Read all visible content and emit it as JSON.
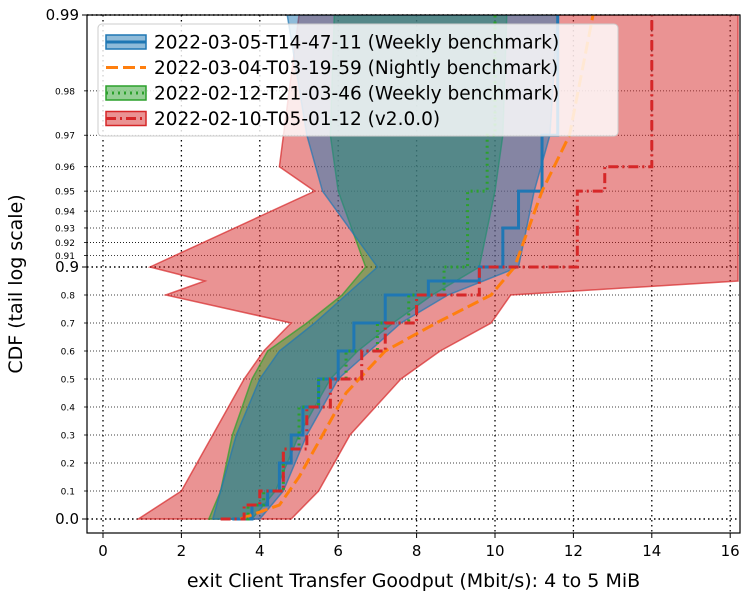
{
  "chart_data": {
    "type": "line",
    "subtype": "cdf-step-with-confidence-bands",
    "xlabel": "exit Client Transfer Goodput (Mbit/s): 4 to 5 MiB",
    "ylabel": "CDF (tail log scale)",
    "xlim": [
      -0.4,
      16.2
    ],
    "y_scale": "tail-log",
    "x_ticks": [
      "0",
      "2",
      "4",
      "6",
      "8",
      "10",
      "12",
      "14",
      "16"
    ],
    "y_ticks_major": [
      "0.0",
      "0.9",
      "0.99"
    ],
    "y_ticks_minor": [
      "0.1",
      "0.2",
      "0.3",
      "0.4",
      "0.5",
      "0.6",
      "0.7",
      "0.8",
      "0.91",
      "0.92",
      "0.93",
      "0.94",
      "0.95",
      "0.96",
      "0.97",
      "0.98"
    ],
    "grid": true,
    "legend_position": "top-left",
    "series": [
      {
        "name": "2022-03-05-T14-47-11 (Weekly benchmark)",
        "color": "#1f77b4",
        "linestyle": "solid",
        "points": [
          [
            3.3,
            0.0
          ],
          [
            3.8,
            0.05
          ],
          [
            4.2,
            0.1
          ],
          [
            4.5,
            0.2
          ],
          [
            4.8,
            0.3
          ],
          [
            5.1,
            0.4
          ],
          [
            5.5,
            0.5
          ],
          [
            6.0,
            0.6
          ],
          [
            6.4,
            0.7
          ],
          [
            7.2,
            0.8
          ],
          [
            8.3,
            0.85
          ],
          [
            9.6,
            0.9
          ],
          [
            10.2,
            0.93
          ],
          [
            10.6,
            0.95
          ],
          [
            11.2,
            0.97
          ],
          [
            11.6,
            0.99
          ]
        ],
        "band": [
          [
            2.8,
            4.0,
            0.0
          ],
          [
            3.0,
            4.6,
            0.1
          ],
          [
            3.4,
            5.2,
            0.3
          ],
          [
            4.0,
            6.0,
            0.5
          ],
          [
            4.5,
            6.8,
            0.6
          ],
          [
            5.4,
            7.6,
            0.7
          ],
          [
            6.2,
            8.8,
            0.8
          ],
          [
            7.0,
            10.6,
            0.9
          ],
          [
            5.6,
            11.0,
            0.95
          ],
          [
            5.2,
            11.4,
            0.97
          ],
          [
            4.7,
            11.6,
            0.99
          ]
        ]
      },
      {
        "name": "2022-03-04-T03-19-59 (Nightly benchmark)",
        "color": "#ff7f0e",
        "linestyle": "dashed",
        "points": [
          [
            3.5,
            0.0
          ],
          [
            4.5,
            0.05
          ],
          [
            5.0,
            0.15
          ],
          [
            5.6,
            0.3
          ],
          [
            6.2,
            0.45
          ],
          [
            7.2,
            0.6
          ],
          [
            8.5,
            0.7
          ],
          [
            9.9,
            0.8
          ],
          [
            10.5,
            0.9
          ],
          [
            11.2,
            0.95
          ],
          [
            11.9,
            0.97
          ],
          [
            12.5,
            0.99
          ]
        ]
      },
      {
        "name": "2022-02-12-T21-03-46 (Weekly benchmark)",
        "color": "#2ca02c",
        "linestyle": "dotted",
        "points": [
          [
            3.2,
            0.0
          ],
          [
            3.7,
            0.05
          ],
          [
            4.1,
            0.1
          ],
          [
            4.6,
            0.25
          ],
          [
            5.0,
            0.4
          ],
          [
            5.5,
            0.5
          ],
          [
            6.2,
            0.6
          ],
          [
            7.0,
            0.7
          ],
          [
            7.8,
            0.8
          ],
          [
            8.7,
            0.9
          ],
          [
            9.3,
            0.95
          ],
          [
            9.8,
            0.97
          ],
          [
            10.0,
            0.99
          ]
        ],
        "band": [
          [
            2.7,
            3.8,
            0.0
          ],
          [
            3.0,
            4.4,
            0.1
          ],
          [
            3.3,
            5.0,
            0.3
          ],
          [
            3.8,
            5.8,
            0.5
          ],
          [
            4.2,
            6.5,
            0.6
          ],
          [
            5.2,
            7.4,
            0.7
          ],
          [
            6.1,
            8.4,
            0.8
          ],
          [
            6.7,
            9.6,
            0.9
          ],
          [
            6.0,
            10.0,
            0.95
          ],
          [
            5.8,
            10.2,
            0.97
          ],
          [
            5.9,
            10.3,
            0.99
          ]
        ]
      },
      {
        "name": "2022-02-10-T05-01-12 (v2.0.0)",
        "color": "#d62728",
        "linestyle": "dashdot",
        "points": [
          [
            3.0,
            0.0
          ],
          [
            3.6,
            0.05
          ],
          [
            4.0,
            0.1
          ],
          [
            4.6,
            0.25
          ],
          [
            5.2,
            0.4
          ],
          [
            5.8,
            0.5
          ],
          [
            6.6,
            0.6
          ],
          [
            7.2,
            0.7
          ],
          [
            8.0,
            0.8
          ],
          [
            9.6,
            0.9
          ],
          [
            11.9,
            0.9
          ],
          [
            12.1,
            0.95
          ],
          [
            12.8,
            0.96
          ],
          [
            14.0,
            0.99
          ]
        ],
        "band": [
          [
            0.9,
            4.8,
            0.0
          ],
          [
            2.0,
            5.5,
            0.1
          ],
          [
            2.8,
            6.3,
            0.3
          ],
          [
            3.6,
            7.6,
            0.5
          ],
          [
            4.1,
            8.6,
            0.6
          ],
          [
            4.8,
            9.9,
            0.7
          ],
          [
            1.6,
            10.4,
            0.8
          ],
          [
            2.6,
            16.2,
            0.85
          ],
          [
            1.2,
            16.2,
            0.9
          ],
          [
            5.4,
            16.2,
            0.95
          ],
          [
            4.5,
            16.2,
            0.96
          ],
          [
            5.0,
            16.2,
            0.99
          ]
        ]
      }
    ]
  }
}
